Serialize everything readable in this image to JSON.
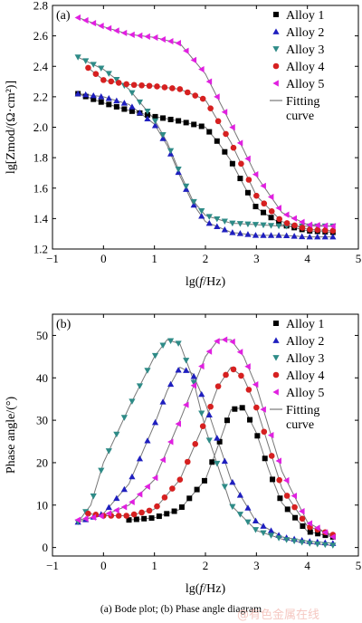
{
  "figure": {
    "caption": "(a)  Bode  plot;  (b) Phase angle diagram",
    "watermark": "@有色金属在线"
  },
  "chart_data": [
    {
      "type": "line",
      "panel_label": "(a)",
      "xlabel": "lg(f/Hz)",
      "ylabel": "lg[Zmod/(Ω·cm²)]",
      "xlim": [
        -1,
        5
      ],
      "ylim": [
        1.2,
        2.8
      ],
      "xticks": [
        -1,
        0,
        1,
        2,
        3,
        4,
        5
      ],
      "yticks": [
        1.2,
        1.4,
        1.6,
        1.8,
        2.0,
        2.2,
        2.4,
        2.6,
        2.8
      ],
      "ytick_labels": [
        "1.2",
        "1.4",
        "1.6",
        "1.8",
        "2.0",
        "2.2",
        "2.4",
        "2.6",
        "2.8"
      ],
      "legend_position": "top-right",
      "legend": [
        "Alloy 1",
        "Alloy 2",
        "Alloy 3",
        "Alloy 4",
        "Alloy 5",
        "Fitting curve"
      ],
      "series": [
        {
          "name": "Alloy 1",
          "marker": "square",
          "color": "#000000",
          "x": [
            -0.5,
            0.0,
            0.5,
            1.0,
            1.5,
            2.0,
            2.25,
            2.5,
            2.75,
            3.0,
            3.5,
            4.0,
            4.5
          ],
          "y": [
            2.22,
            2.16,
            2.11,
            2.07,
            2.04,
            2.0,
            1.9,
            1.78,
            1.62,
            1.47,
            1.36,
            1.32,
            1.31
          ]
        },
        {
          "name": "Alloy 2",
          "marker": "triangle-up",
          "color": "#1f1fbf",
          "x": [
            -0.5,
            0.0,
            0.5,
            1.0,
            1.25,
            1.5,
            1.75,
            2.0,
            2.5,
            3.0,
            3.5,
            4.0,
            4.5
          ],
          "y": [
            2.22,
            2.2,
            2.15,
            2.02,
            1.88,
            1.68,
            1.5,
            1.38,
            1.31,
            1.29,
            1.29,
            1.28,
            1.28
          ]
        },
        {
          "name": "Alloy 3",
          "marker": "triangle-down",
          "color": "#2e8b87",
          "x": [
            -0.5,
            0.0,
            0.5,
            1.0,
            1.25,
            1.5,
            1.75,
            2.0,
            2.5,
            3.0,
            3.5,
            4.0,
            4.5
          ],
          "y": [
            2.46,
            2.38,
            2.25,
            2.05,
            1.9,
            1.7,
            1.52,
            1.42,
            1.37,
            1.36,
            1.35,
            1.35,
            1.35
          ]
        },
        {
          "name": "Alloy 4",
          "marker": "circle",
          "color": "#d62020",
          "x": [
            -0.3,
            0.0,
            0.5,
            1.0,
            1.5,
            2.0,
            2.5,
            3.0,
            3.5,
            4.0,
            4.5
          ],
          "y": [
            2.39,
            2.31,
            2.28,
            2.27,
            2.25,
            2.18,
            1.9,
            1.55,
            1.38,
            1.33,
            1.32
          ]
        },
        {
          "name": "Alloy 5",
          "marker": "triangle-left",
          "color": "#e020e0",
          "x": [
            -0.5,
            0.0,
            0.5,
            1.0,
            1.5,
            2.0,
            2.5,
            3.0,
            3.5,
            4.0,
            4.5
          ],
          "y": [
            2.72,
            2.66,
            2.61,
            2.59,
            2.55,
            2.35,
            2.02,
            1.68,
            1.44,
            1.36,
            1.35
          ]
        }
      ]
    },
    {
      "type": "line",
      "panel_label": "(b)",
      "xlabel": "lg(f/Hz)",
      "ylabel": "Phase angle/(°)",
      "xlim": [
        -1,
        5
      ],
      "ylim": [
        -2,
        55
      ],
      "xticks": [
        -1,
        0,
        1,
        2,
        3,
        4,
        5
      ],
      "yticks": [
        0,
        10,
        20,
        30,
        40,
        50
      ],
      "ytick_labels": [
        "0",
        "10",
        "20",
        "30",
        "40",
        "50"
      ],
      "legend_position": "top-right",
      "legend": [
        "Alloy 1",
        "Alloy 2",
        "Alloy 3",
        "Alloy 4",
        "Alloy 5",
        "Fitting curve"
      ],
      "series": [
        {
          "name": "Alloy 1",
          "marker": "square",
          "color": "#000000",
          "x": [
            0.5,
            1.0,
            1.5,
            2.0,
            2.25,
            2.5,
            2.75,
            3.0,
            3.25,
            3.5,
            4.0,
            4.5
          ],
          "y": [
            6.5,
            7.0,
            9.0,
            16.0,
            24.0,
            32.5,
            33.0,
            27.0,
            18.0,
            10.5,
            3.8,
            2.5
          ]
        },
        {
          "name": "Alloy 2",
          "marker": "triangle-up",
          "color": "#1f1fbf",
          "x": [
            -0.5,
            0.0,
            0.5,
            1.0,
            1.25,
            1.5,
            1.75,
            2.0,
            2.5,
            3.0,
            3.5,
            4.0,
            4.5
          ],
          "y": [
            6.0,
            8.0,
            15.0,
            29.0,
            37.0,
            42.5,
            41.0,
            34.0,
            16.0,
            6.0,
            2.5,
            1.5,
            1.0
          ]
        },
        {
          "name": "Alloy 3",
          "marker": "triangle-down",
          "color": "#2e8b87",
          "x": [
            -0.5,
            -0.25,
            0.0,
            0.5,
            1.0,
            1.25,
            1.5,
            1.75,
            2.0,
            2.5,
            3.0,
            3.5,
            4.0,
            4.5
          ],
          "y": [
            6.0,
            10.0,
            20.0,
            33.0,
            45.0,
            49.0,
            48.0,
            40.0,
            28.0,
            10.0,
            4.0,
            2.0,
            1.0,
            0.5
          ]
        },
        {
          "name": "Alloy 4",
          "marker": "circle",
          "color": "#d62020",
          "x": [
            -0.3,
            0.0,
            0.5,
            1.0,
            1.5,
            2.0,
            2.25,
            2.5,
            2.75,
            3.0,
            3.5,
            4.0,
            4.5
          ],
          "y": [
            8.0,
            7.5,
            7.5,
            9.0,
            16.0,
            30.0,
            38.0,
            42.5,
            40.0,
            33.0,
            14.0,
            5.0,
            3.0
          ]
        },
        {
          "name": "Alloy 5",
          "marker": "triangle-left",
          "color": "#e020e0",
          "x": [
            -0.5,
            0.0,
            0.5,
            1.0,
            1.5,
            2.0,
            2.25,
            2.5,
            2.75,
            3.0,
            3.5,
            4.0,
            4.5
          ],
          "y": [
            6.5,
            7.5,
            10.0,
            16.0,
            30.0,
            45.0,
            49.0,
            49.0,
            45.0,
            38.0,
            18.0,
            6.0,
            2.5
          ]
        }
      ]
    }
  ]
}
